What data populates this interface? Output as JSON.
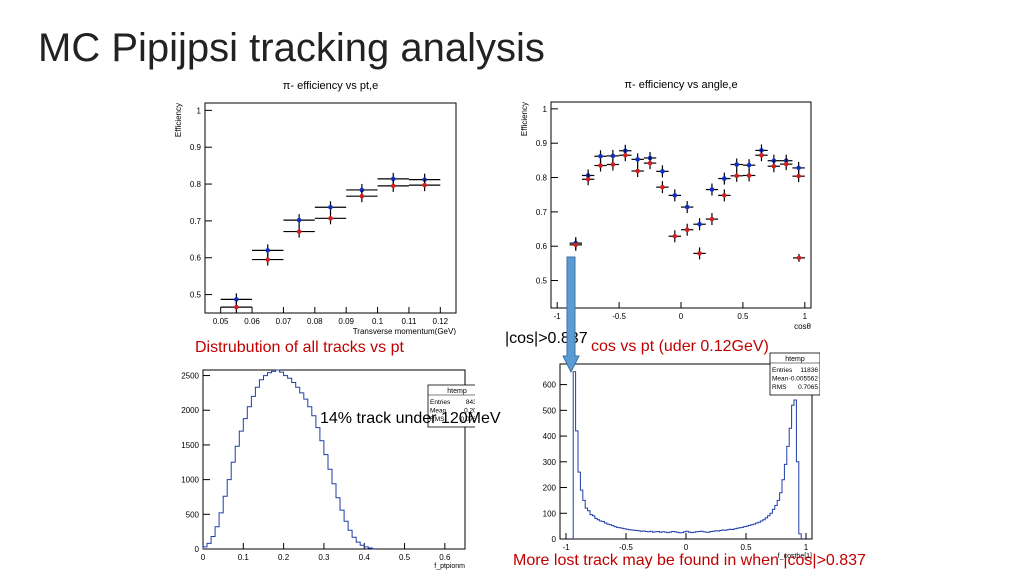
{
  "slide": {
    "title": "MC Pipijpsi tracking analysis",
    "captions": {
      "dist_all": "Distrubution of all tracks vs pt",
      "cos_cut": "|cos|>0.837",
      "cos_vs_pt": "cos vs pt (uder 0.12GeV)",
      "pct_under": "14% track under 120MeV",
      "lost": "More lost track may be found in when |cos|>0.837"
    },
    "colors": {
      "caption_red": "#c00000",
      "arrow_fill": "#5b9bd5",
      "arrow_stroke": "#41719c",
      "hist_line": "#1f3ea8",
      "series_blue": "#1030c0",
      "series_red": "#d02020"
    }
  },
  "chart_data": [
    {
      "type": "scatter",
      "title": "π- efficiency vs pt,e",
      "xlabel": "Transverse momentum(GeV)",
      "ylabel": "Efficiency",
      "xlim": [
        0.045,
        0.125
      ],
      "ylim": [
        0.45,
        1.02
      ],
      "xticks": [
        "0.05",
        "0.06",
        "0.07",
        "0.08",
        "0.09",
        "0.1",
        "0.11",
        "0.12"
      ],
      "yticks": [
        "0.5",
        "0.6",
        "0.7",
        "0.8",
        "0.9",
        "1"
      ],
      "x_halfwidth": 0.005,
      "series": [
        {
          "color": "blue",
          "x": [
            0.055,
            0.065,
            0.075,
            0.085,
            0.095,
            0.105,
            0.115
          ],
          "values": [
            0.487,
            0.62,
            0.702,
            0.737,
            0.784,
            0.814,
            0.812
          ]
        },
        {
          "color": "red",
          "x": [
            0.055,
            0.065,
            0.075,
            0.085,
            0.095,
            0.105,
            0.115
          ],
          "values": [
            0.466,
            0.595,
            0.671,
            0.707,
            0.767,
            0.795,
            0.797
          ]
        }
      ]
    },
    {
      "type": "scatter",
      "title": "π- efficiency vs angle,e",
      "xlabel": "cosθ",
      "ylabel": "Efficiency",
      "xlim": [
        -1.05,
        1.05
      ],
      "ylim": [
        0.42,
        1.02
      ],
      "xticks": [
        "-1",
        "-0.5",
        "0",
        "0.5",
        "1"
      ],
      "yticks": [
        "0.5",
        "0.6",
        "0.7",
        "0.8",
        "0.9",
        "1"
      ],
      "x_halfwidth": 0.05,
      "series": [
        {
          "color": "blue",
          "x": [
            -0.85,
            -0.75,
            -0.65,
            -0.55,
            -0.45,
            -0.35,
            -0.25,
            -0.15,
            -0.05,
            0.05,
            0.15,
            0.25,
            0.35,
            0.45,
            0.55,
            0.65,
            0.75,
            0.85,
            0.95
          ],
          "values": [
            0.609,
            0.806,
            0.862,
            0.863,
            0.878,
            0.853,
            0.857,
            0.818,
            0.748,
            0.714,
            0.664,
            0.765,
            0.797,
            0.838,
            0.836,
            0.879,
            0.849,
            0.849,
            0.828
          ]
        },
        {
          "color": "red",
          "x": [
            -0.85,
            -0.75,
            -0.65,
            -0.55,
            -0.45,
            -0.35,
            -0.25,
            -0.15,
            -0.05,
            0.05,
            0.15,
            0.25,
            0.35,
            0.45,
            0.55,
            0.65,
            0.75,
            0.85,
            0.95
          ],
          "values": [
            0.604,
            0.795,
            0.835,
            0.838,
            0.865,
            0.819,
            0.842,
            0.772,
            0.629,
            0.648,
            0.579,
            0.679,
            0.748,
            0.805,
            0.806,
            0.865,
            0.833,
            0.839,
            0.804
          ]
        },
        {
          "color": "red",
          "x": [
            1.1
          ],
          "values": [
            0.564
          ],
          "note_hidden": true
        }
      ],
      "extra_point": {
        "x": 1.13,
        "value": 0.566
      }
    },
    {
      "type": "area",
      "title": "",
      "xlabel": "f_ptpionm",
      "xlim": [
        0,
        0.65
      ],
      "ylim": [
        0,
        2580
      ],
      "xticks": [
        "0",
        "0.1",
        "0.2",
        "0.3",
        "0.4",
        "0.5",
        "0.6"
      ],
      "yticks": [
        "0",
        "500",
        "1000",
        "1500",
        "2000",
        "2500"
      ],
      "stats": {
        "name": "htemp",
        "rows": [
          [
            "Entries",
            "84309"
          ],
          [
            "Mean",
            "0.2034"
          ],
          [
            "RMS",
            "0.07556"
          ]
        ]
      },
      "bin_width": 0.01,
      "x": [
        0.0,
        0.01,
        0.02,
        0.03,
        0.04,
        0.05,
        0.06,
        0.07,
        0.08,
        0.09,
        0.1,
        0.11,
        0.12,
        0.13,
        0.14,
        0.15,
        0.16,
        0.17,
        0.18,
        0.19,
        0.2,
        0.21,
        0.22,
        0.23,
        0.24,
        0.25,
        0.26,
        0.27,
        0.28,
        0.29,
        0.3,
        0.31,
        0.32,
        0.33,
        0.34,
        0.35,
        0.36,
        0.37,
        0.38,
        0.39,
        0.4,
        0.41,
        0.42
      ],
      "values": [
        30,
        80,
        180,
        320,
        520,
        760,
        1000,
        1250,
        1480,
        1700,
        1880,
        2050,
        2200,
        2330,
        2440,
        2500,
        2540,
        2560,
        2580,
        2550,
        2500,
        2460,
        2400,
        2330,
        2250,
        2160,
        2050,
        1920,
        1750,
        1560,
        1360,
        1150,
        940,
        740,
        560,
        400,
        270,
        170,
        100,
        55,
        30,
        15,
        5
      ]
    },
    {
      "type": "area",
      "title": "",
      "xlabel": "f_costhe[1]",
      "xlim": [
        -1.05,
        1.05
      ],
      "ylim": [
        0,
        680
      ],
      "xticks": [
        "-1",
        "-0.5",
        "0",
        "0.5",
        "1"
      ],
      "yticks": [
        "0",
        "100",
        "200",
        "300",
        "400",
        "500",
        "600"
      ],
      "stats": {
        "name": "htemp",
        "rows": [
          [
            "Entries",
            "11836"
          ],
          [
            "Mean",
            "-0.005562"
          ],
          [
            "RMS",
            "0.7065"
          ]
        ]
      },
      "bin_width": 0.02,
      "x": [
        -0.94,
        -0.92,
        -0.9,
        -0.88,
        -0.86,
        -0.84,
        -0.82,
        -0.8,
        -0.78,
        -0.76,
        -0.74,
        -0.72,
        -0.7,
        -0.68,
        -0.66,
        -0.64,
        -0.62,
        -0.6,
        -0.58,
        -0.56,
        -0.54,
        -0.52,
        -0.5,
        -0.48,
        -0.46,
        -0.44,
        -0.42,
        -0.4,
        -0.38,
        -0.36,
        -0.34,
        -0.32,
        -0.3,
        -0.28,
        -0.26,
        -0.24,
        -0.22,
        -0.2,
        -0.18,
        -0.16,
        -0.14,
        -0.12,
        -0.1,
        -0.08,
        -0.06,
        -0.04,
        -0.02,
        0.0,
        0.02,
        0.04,
        0.06,
        0.08,
        0.1,
        0.12,
        0.14,
        0.16,
        0.18,
        0.2,
        0.22,
        0.24,
        0.26,
        0.28,
        0.3,
        0.32,
        0.34,
        0.36,
        0.38,
        0.4,
        0.42,
        0.44,
        0.46,
        0.48,
        0.5,
        0.52,
        0.54,
        0.56,
        0.58,
        0.6,
        0.62,
        0.64,
        0.66,
        0.68,
        0.7,
        0.72,
        0.74,
        0.76,
        0.78,
        0.8,
        0.82,
        0.84,
        0.86,
        0.88,
        0.9,
        0.92,
        0.94
      ],
      "values": [
        650,
        420,
        260,
        190,
        150,
        120,
        110,
        95,
        90,
        80,
        75,
        70,
        68,
        62,
        58,
        55,
        52,
        48,
        45,
        44,
        42,
        40,
        38,
        36,
        35,
        34,
        33,
        32,
        30,
        31,
        29,
        28,
        30,
        27,
        28,
        29,
        26,
        28,
        27,
        25,
        27,
        29,
        28,
        26,
        24,
        25,
        28,
        30,
        27,
        25,
        26,
        28,
        29,
        30,
        28,
        27,
        26,
        29,
        30,
        32,
        31,
        33,
        35,
        34,
        36,
        38,
        37,
        40,
        42,
        44,
        45,
        48,
        50,
        53,
        55,
        58,
        62,
        65,
        70,
        75,
        82,
        90,
        100,
        115,
        130,
        150,
        180,
        230,
        290,
        360,
        430,
        520,
        540,
        300,
        20
      ]
    }
  ]
}
